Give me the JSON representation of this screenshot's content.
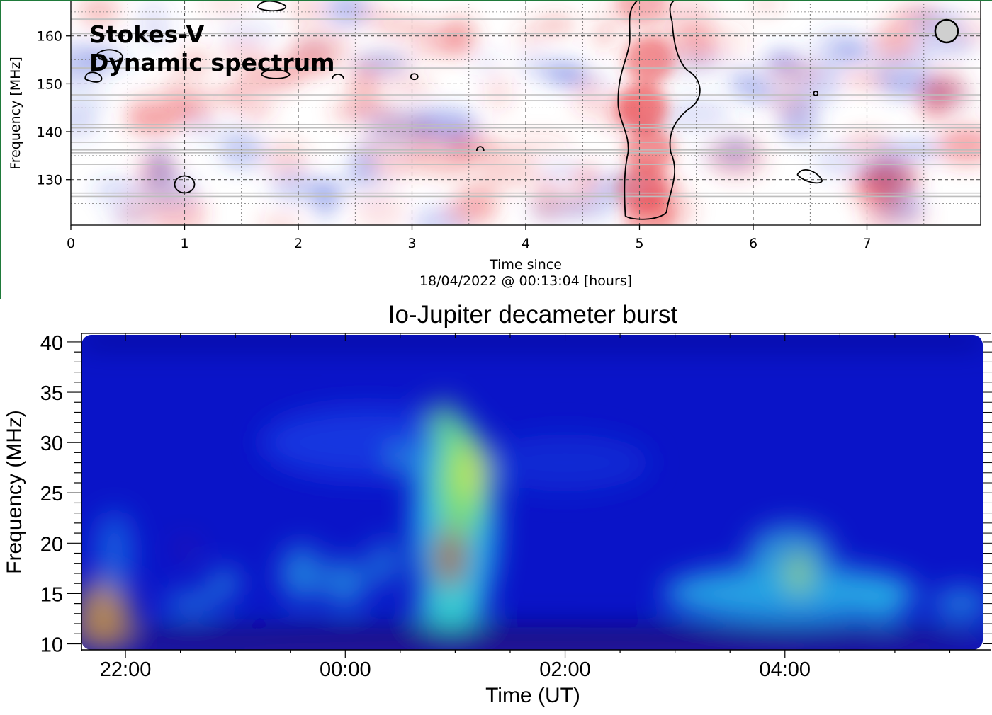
{
  "chart_data": [
    {
      "type": "heatmap",
      "annotation": [
        "Stokes-V",
        "Dynamic spectrum"
      ],
      "ylabel": "Frequency [MHz]",
      "xlabel_lines": [
        "Time since",
        "18/04/2022 @ 00:13:04 [hours]"
      ],
      "xlim": [
        0,
        8.0
      ],
      "ylim": [
        120.5,
        167.5
      ],
      "xticks": [
        0,
        1,
        2,
        3,
        4,
        5,
        6,
        7
      ],
      "yticks": [
        130,
        140,
        150,
        160
      ],
      "grid": true,
      "colormap": "diverging blue-white-red",
      "colors": {
        "positive": "#e8343a",
        "negative": "#3a4fd8",
        "neutral": "#ffffff"
      },
      "features": [
        {
          "label": "strong positive emission",
          "x_center": 5.05,
          "x_width": 0.45,
          "y_range": [
            121,
            166
          ],
          "level": 1.0
        },
        {
          "label": "contour",
          "x_center": 1.0,
          "y_center": 129,
          "level": -0.3
        }
      ],
      "beam_marker": {
        "x": 7.7,
        "y": 161
      }
    },
    {
      "type": "heatmap",
      "title": "Io-Jupiter decameter burst",
      "xlabel": "Time (UT)",
      "ylabel": "Frequency (MHz)",
      "xticks": [
        "22:00",
        "00:00",
        "02:00",
        "04:00"
      ],
      "xtick_hours": [
        22,
        24,
        26,
        28
      ],
      "xlim_hours": [
        21.6,
        29.8
      ],
      "yticks": [
        10,
        15,
        20,
        25,
        30,
        35,
        40
      ],
      "ylim": [
        9.4,
        40.7
      ],
      "colormap": "jet",
      "features": [
        {
          "label": "main burst",
          "t_center": 25.0,
          "t_width": 0.5,
          "f_range": [
            10,
            35
          ],
          "peak_f": 19,
          "level": 1.0
        },
        {
          "label": "secondary burst",
          "t_center": 28.05,
          "t_width": 1.3,
          "f_range": [
            12,
            22
          ],
          "level": 0.45
        },
        {
          "label": "low-frequency enhancement",
          "t_center": 21.9,
          "f_range": [
            10,
            16
          ],
          "level": 0.55
        }
      ]
    }
  ]
}
